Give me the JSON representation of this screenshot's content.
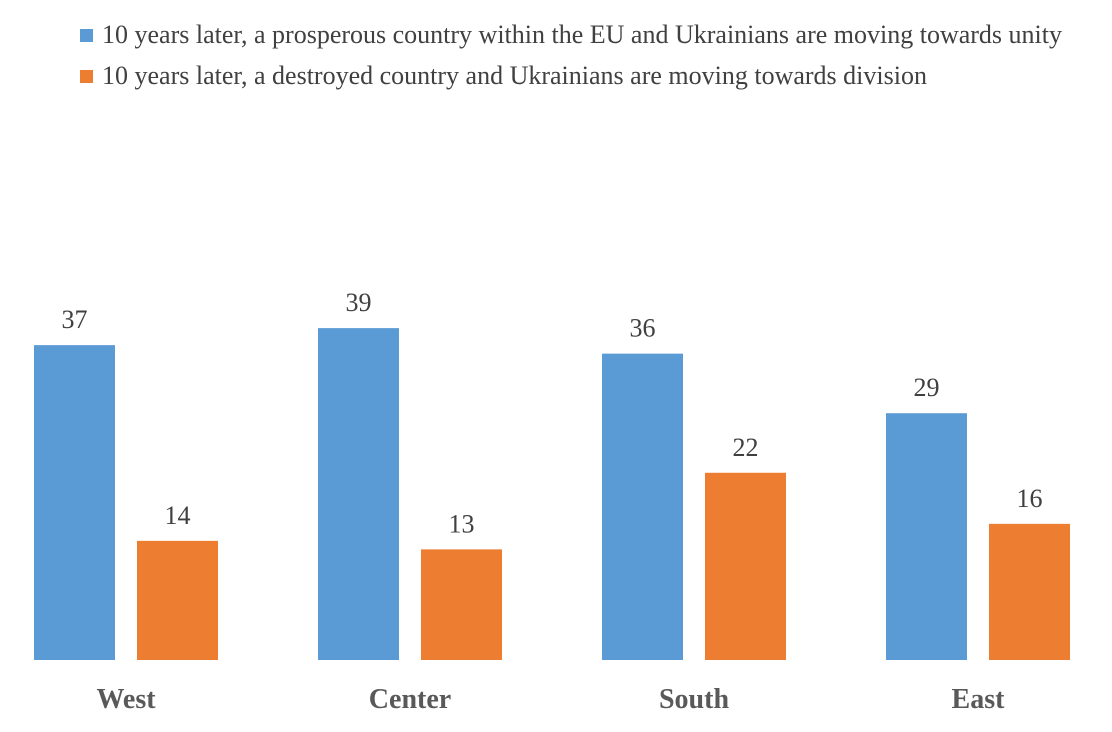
{
  "chart_data": {
    "type": "bar",
    "title": "",
    "xlabel": "",
    "ylabel": "",
    "ylim": [
      0,
      40
    ],
    "grid": false,
    "legend_position": "top",
    "categories": [
      "West",
      "Center",
      "South",
      "East"
    ],
    "series": [
      {
        "name": "10 years later, a prosperous country within the EU and Ukrainians are moving towards unity",
        "color": "#5B9BD5",
        "values": [
          37,
          39,
          36,
          29
        ]
      },
      {
        "name": "10 years later, a destroyed country and Ukrainians are moving towards division",
        "color": "#ED7D31",
        "values": [
          14,
          13,
          22,
          16
        ]
      }
    ]
  }
}
